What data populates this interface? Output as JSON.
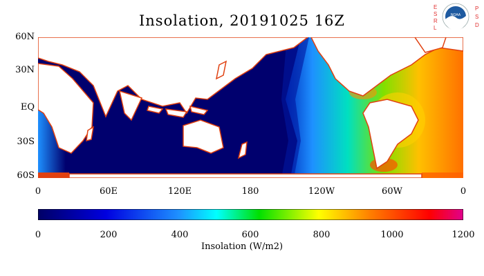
{
  "title": "Insolation, 20191025 16Z",
  "y_labels": [
    "60N",
    "30N",
    "EQ",
    "30S",
    "60S"
  ],
  "x_labels": [
    "0",
    "60E",
    "120E",
    "180",
    "120W",
    "60W",
    "0"
  ],
  "colorbar": {
    "ticks": [
      "0",
      "200",
      "400",
      "600",
      "800",
      "1000",
      "1200"
    ],
    "title": "Insolation (W/m2)",
    "colors": [
      "#000066",
      "#0000e0",
      "#1e90ff",
      "#00ffff",
      "#00e000",
      "#ffff00",
      "#ff8000",
      "#ff0000",
      "#e0008c"
    ]
  },
  "logo": {
    "left_letters": [
      "E",
      "S",
      "R",
      "L"
    ],
    "right_letters": [
      "P",
      "S",
      "D"
    ],
    "badge_text": "NOAA"
  },
  "colors": {
    "ocean_dark": "#00006e",
    "land": "#ffffff",
    "coast": "#e04010",
    "logo_red": "#e03030",
    "noaa_blue": "#1e5aa0"
  }
}
